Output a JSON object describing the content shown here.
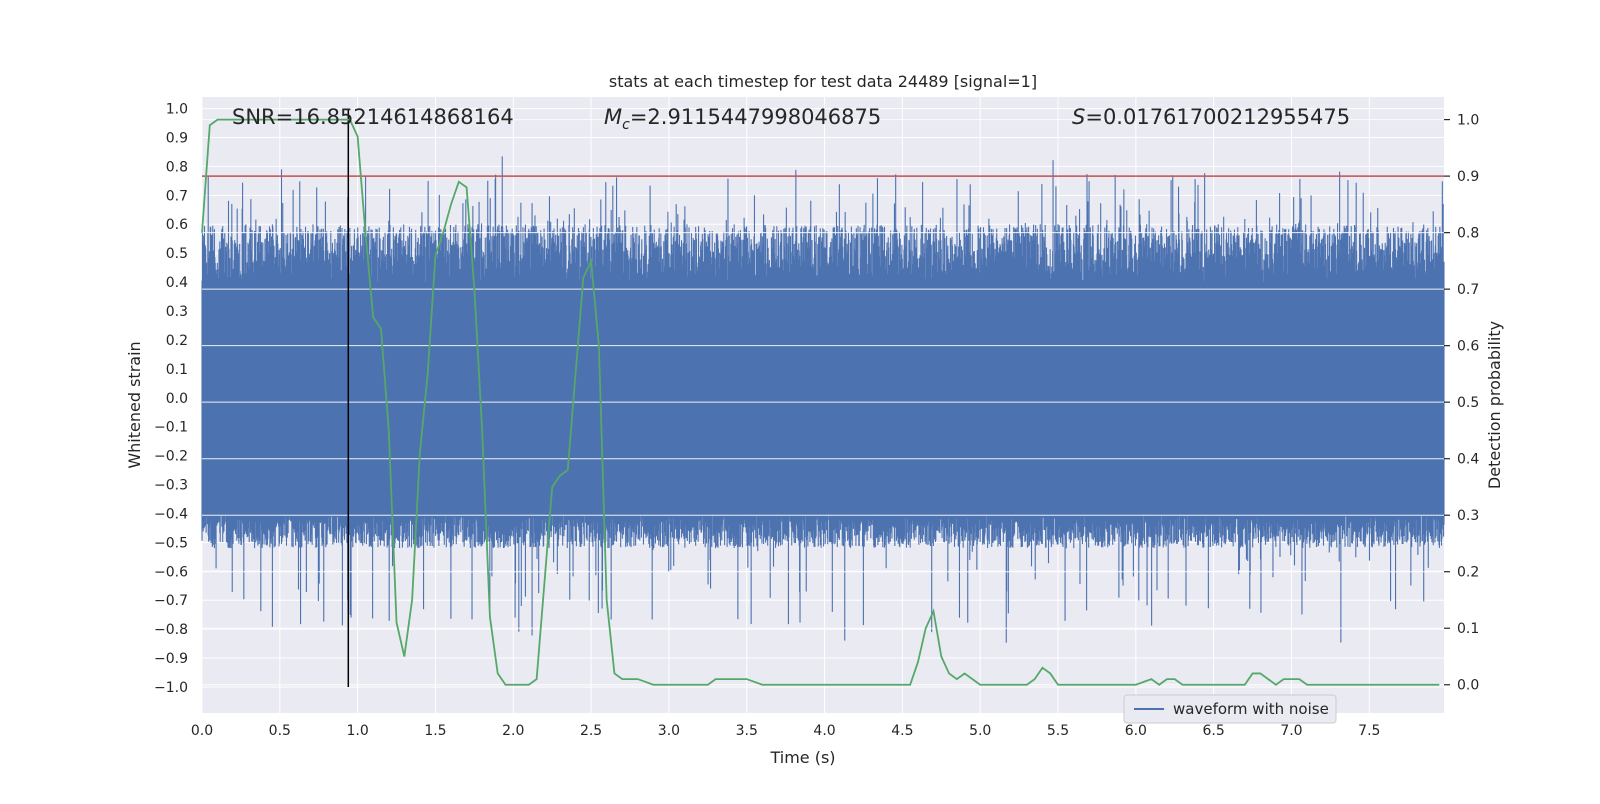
{
  "chart_data": {
    "type": "line",
    "title": "stats at each timestep for test data 24489 [signal=1]",
    "xlabel": "Time (s)",
    "ylabel_left": "Whitened strain",
    "ylabel_right": "Detection probability",
    "xlim": [
      0.0,
      7.98
    ],
    "ylim_left": [
      -1.09,
      1.04
    ],
    "ylim_right": [
      -0.05,
      1.04
    ],
    "x_ticks": [
      0.0,
      0.5,
      1.0,
      1.5,
      2.0,
      2.5,
      3.0,
      3.5,
      4.0,
      4.5,
      5.0,
      5.5,
      6.0,
      6.5,
      7.0,
      7.5
    ],
    "x_tick_labels": [
      "0.0",
      "0.5",
      "1.0",
      "1.5",
      "2.0",
      "2.5",
      "3.0",
      "3.5",
      "4.0",
      "4.5",
      "5.0",
      "5.5",
      "6.0",
      "6.5",
      "7.0",
      "7.5"
    ],
    "y_left_ticks": [
      1.0,
      0.9,
      0.8,
      0.7,
      0.6,
      0.5,
      0.4,
      0.3,
      0.2,
      0.1,
      0.0,
      -0.1,
      -0.2,
      -0.3,
      -0.4,
      -0.5,
      -0.6,
      -0.7,
      -0.8,
      -0.9,
      -1.0
    ],
    "y_left_tick_labels": [
      "1.0",
      "0.9",
      "0.8",
      "0.7",
      "0.6",
      "0.5",
      "0.4",
      "0.3",
      "0.2",
      "0.1",
      "0.0",
      "−0.1",
      "−0.2",
      "−0.3",
      "−0.4",
      "−0.5",
      "−0.6",
      "−0.7",
      "−0.8",
      "−0.9",
      "−1.0"
    ],
    "y_right_ticks": [
      1.0,
      0.9,
      0.8,
      0.7,
      0.6,
      0.5,
      0.4,
      0.3,
      0.2,
      0.1,
      0.0
    ],
    "y_right_tick_labels": [
      "1.0",
      "0.9",
      "0.8",
      "0.7",
      "0.6",
      "0.5",
      "0.4",
      "0.3",
      "0.2",
      "0.1",
      "0.0"
    ],
    "annotations": {
      "snr": "SNR=16.85214614868164",
      "mc_symbol": "M",
      "mc_sub": "c",
      "mc_value": "=2.9115447998046875",
      "s_symbol": "S",
      "s_value": "=0.01761700212955475"
    },
    "threshold": 0.9,
    "marker_time": 0.94,
    "series": [
      {
        "name": "waveform with noise",
        "axis": "left",
        "style": "noise-band",
        "color": "#4c72b0",
        "upper_envelope": [
          0.4,
          0.85
        ],
        "lower_envelope": [
          -0.4,
          -0.92
        ],
        "x_range": [
          0.0,
          7.98
        ],
        "points": 3000
      },
      {
        "name": "detection probability",
        "axis": "right",
        "color": "#55a868",
        "x": [
          0.0,
          0.05,
          0.1,
          0.15,
          0.2,
          0.25,
          0.3,
          0.35,
          0.4,
          0.45,
          0.5,
          0.55,
          0.6,
          0.65,
          0.7,
          0.75,
          0.8,
          0.85,
          0.9,
          0.95,
          1.0,
          1.05,
          1.1,
          1.15,
          1.2,
          1.25,
          1.3,
          1.35,
          1.4,
          1.45,
          1.5,
          1.55,
          1.6,
          1.65,
          1.7,
          1.75,
          1.8,
          1.85,
          1.9,
          1.95,
          2.0,
          2.05,
          2.1,
          2.15,
          2.2,
          2.25,
          2.3,
          2.35,
          2.4,
          2.45,
          2.5,
          2.55,
          2.6,
          2.65,
          2.7,
          2.75,
          2.8,
          2.9,
          3.0,
          3.1,
          3.2,
          3.25,
          3.3,
          3.35,
          3.4,
          3.5,
          3.6,
          3.7,
          3.8,
          3.9,
          4.0,
          4.1,
          4.2,
          4.3,
          4.4,
          4.5,
          4.55,
          4.6,
          4.65,
          4.7,
          4.75,
          4.8,
          4.85,
          4.9,
          4.95,
          5.0,
          5.1,
          5.2,
          5.3,
          5.35,
          5.4,
          5.45,
          5.5,
          5.55,
          5.6,
          5.7,
          5.8,
          5.9,
          6.0,
          6.1,
          6.15,
          6.2,
          6.25,
          6.3,
          6.4,
          6.5,
          6.6,
          6.7,
          6.75,
          6.8,
          6.85,
          6.9,
          6.95,
          7.0,
          7.05,
          7.1,
          7.2,
          7.3,
          7.5,
          7.7,
          7.8,
          7.95
        ],
        "y": [
          0.8,
          0.99,
          1.0,
          1.0,
          1.0,
          1.0,
          1.0,
          1.0,
          1.0,
          1.0,
          1.0,
          1.0,
          1.0,
          1.0,
          1.0,
          1.0,
          1.0,
          1.0,
          1.0,
          1.0,
          0.97,
          0.8,
          0.65,
          0.63,
          0.45,
          0.11,
          0.05,
          0.15,
          0.41,
          0.55,
          0.76,
          0.8,
          0.85,
          0.89,
          0.88,
          0.7,
          0.45,
          0.12,
          0.02,
          0.0,
          0.0,
          0.0,
          0.0,
          0.01,
          0.18,
          0.35,
          0.37,
          0.38,
          0.55,
          0.72,
          0.75,
          0.6,
          0.15,
          0.02,
          0.01,
          0.01,
          0.01,
          0.0,
          0.0,
          0.0,
          0.0,
          0.0,
          0.01,
          0.01,
          0.01,
          0.01,
          0.0,
          0.0,
          0.0,
          0.0,
          0.0,
          0.0,
          0.0,
          0.0,
          0.0,
          0.0,
          0.0,
          0.04,
          0.1,
          0.13,
          0.05,
          0.02,
          0.01,
          0.02,
          0.01,
          0.0,
          0.0,
          0.0,
          0.0,
          0.01,
          0.03,
          0.02,
          0.0,
          0.0,
          0.0,
          0.0,
          0.0,
          0.0,
          0.0,
          0.01,
          0.0,
          0.01,
          0.01,
          0.0,
          0.0,
          0.0,
          0.0,
          0.0,
          0.02,
          0.02,
          0.01,
          0.0,
          0.01,
          0.01,
          0.01,
          0.0,
          0.0,
          0.0,
          0.0,
          0.0,
          0.0,
          0.0
        ]
      }
    ],
    "legend": {
      "label": "waveform with noise",
      "location": "lower right"
    }
  },
  "colors": {
    "plot_bg": "#eaeaf2",
    "grid": "#ffffff",
    "threshold": "#c44e52",
    "marker": "#000000",
    "legend_bg": "#eaeaf2"
  }
}
